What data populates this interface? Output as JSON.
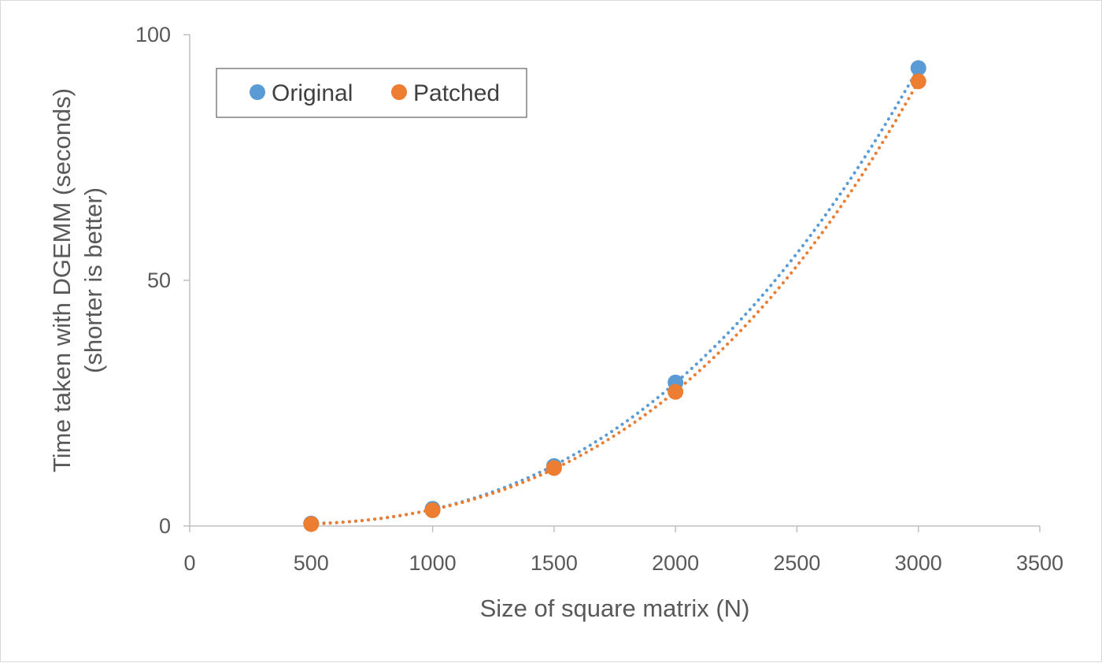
{
  "chart_data": {
    "type": "scatter",
    "title": "",
    "xlabel": "Size of square matrix (N)",
    "ylabel": [
      "Time taken with DGEMM (seconds)",
      "(shorter is better)"
    ],
    "xlim": [
      0,
      3500
    ],
    "ylim": [
      0,
      100
    ],
    "x_ticks": [
      "0",
      "500",
      "1000",
      "1500",
      "2000",
      "2500",
      "3000",
      "3500"
    ],
    "y_ticks": [
      "0",
      "50",
      "100"
    ],
    "grid": false,
    "legend_position": "top-left",
    "trendline": "polynomial",
    "series": [
      {
        "name": "Original",
        "color": "#5b9bd5",
        "x": [
          500,
          1000,
          1500,
          2000,
          3000
        ],
        "y": [
          0.5,
          3.5,
          12.2,
          29.2,
          93.2
        ]
      },
      {
        "name": "Patched",
        "color": "#ed7d31",
        "x": [
          500,
          1000,
          1500,
          2000,
          3000
        ],
        "y": [
          0.4,
          3.2,
          11.8,
          27.3,
          90.5
        ]
      }
    ]
  }
}
